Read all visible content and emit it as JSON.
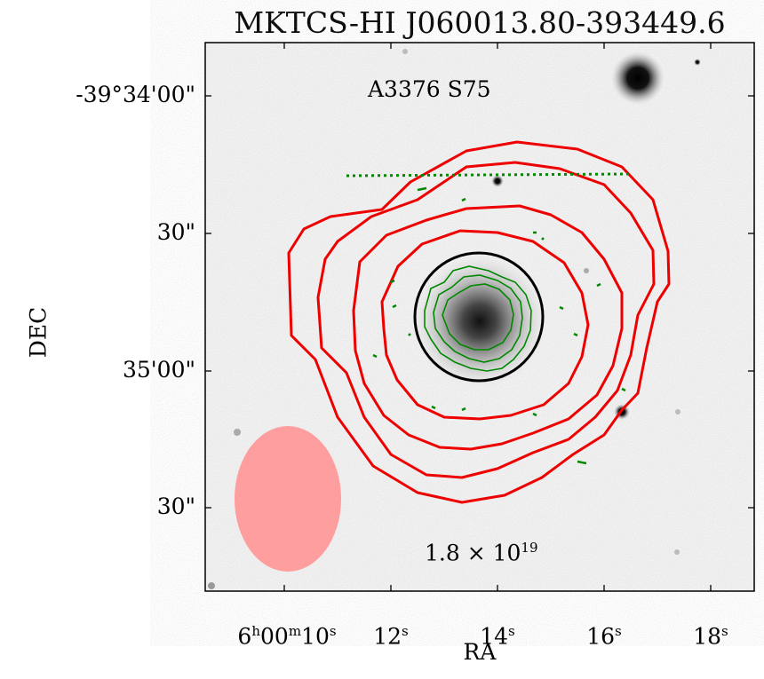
{
  "figure": {
    "title": "MKTCS-HI J060013.80-393449.6",
    "galaxy_label": "A3376 S75",
    "column_density_base": "1.8 × 10",
    "column_density_exp": "19",
    "x_axis_label": "RA",
    "y_axis_label": "DEC",
    "y_ticks": [
      "-39°34'00\"",
      "30\"",
      "35'00\"",
      "30\""
    ],
    "x_ticks": [
      {
        "parts": [
          [
            "6",
            "h"
          ],
          [
            "00",
            "m"
          ],
          [
            "10",
            "s"
          ]
        ]
      },
      {
        "parts": [
          [
            "12",
            "s"
          ]
        ]
      },
      {
        "parts": [
          [
            "14",
            "s"
          ]
        ]
      },
      {
        "parts": [
          [
            "16",
            "s"
          ]
        ]
      },
      {
        "parts": [
          [
            "18",
            "s"
          ]
        ]
      }
    ]
  },
  "colors": {
    "hi_contours": "#ee0000",
    "optical_contours": "#008800",
    "aperture_circle": "#000000",
    "beam_ellipse": "#ff9999"
  }
}
